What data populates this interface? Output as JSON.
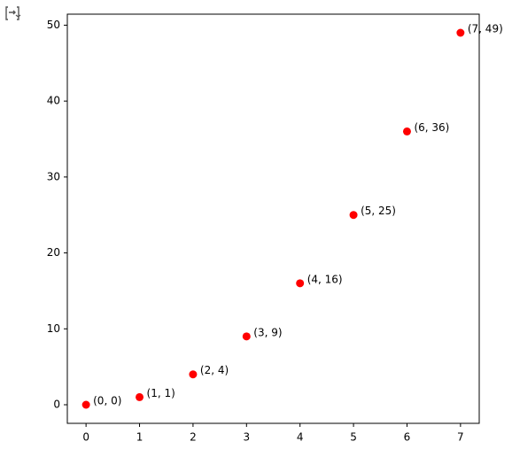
{
  "chart_data": {
    "type": "scatter",
    "x": [
      0,
      1,
      2,
      3,
      4,
      5,
      6,
      7
    ],
    "values": [
      0,
      1,
      4,
      9,
      16,
      25,
      36,
      49
    ],
    "value_labels": [
      "(0, 0)",
      "(1, 1)",
      "(2, 4)",
      "(3, 9)",
      "(4, 16)",
      "(5, 25)",
      "(6, 36)",
      "(7, 49)"
    ],
    "color": "#ff0000",
    "xlim": [
      -0.35,
      7.35
    ],
    "xticks": [
      0,
      1,
      2,
      3,
      4,
      5,
      6,
      7
    ],
    "ylim": [
      -2.45,
      51.45
    ],
    "yticks": [
      0,
      10,
      20,
      30,
      40,
      50
    ]
  }
}
